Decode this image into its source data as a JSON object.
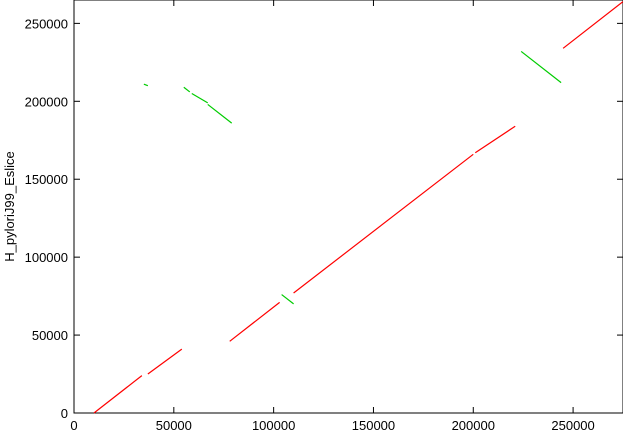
{
  "chart_data": {
    "type": "scatter",
    "title": "",
    "xlabel": "",
    "ylabel": "H_pyloriJ99_Eslice",
    "xlim": [
      0,
      275000
    ],
    "ylim": [
      0,
      265000
    ],
    "x_ticks": [
      "0",
      "50000",
      "100000",
      "150000",
      "200000",
      "250000"
    ],
    "y_ticks": [
      "0",
      "50000",
      "100000",
      "150000",
      "200000",
      "250000"
    ],
    "x_tick_values": [
      0,
      50000,
      100000,
      150000,
      200000,
      250000
    ],
    "y_tick_values": [
      0,
      50000,
      100000,
      150000,
      200000,
      250000
    ],
    "colors": {
      "forward": "#ff0000",
      "reverse": "#00cc00"
    },
    "series": [
      {
        "orientation": "forward",
        "segments": [
          {
            "x": [
              10000,
              34000
            ],
            "y": [
              0,
              24000
            ]
          },
          {
            "x": [
              37000,
              54000
            ],
            "y": [
              25000,
              41000
            ]
          },
          {
            "x": [
              78000,
              103000
            ],
            "y": [
              46000,
              71000
            ]
          },
          {
            "x": [
              110000,
              200000
            ],
            "y": [
              77000,
              166000
            ]
          },
          {
            "x": [
              201000,
              221000
            ],
            "y": [
              167000,
              184000
            ]
          },
          {
            "x": [
              245000,
              275000
            ],
            "y": [
              234000,
              264000
            ]
          }
        ]
      },
      {
        "orientation": "reverse",
        "segments": [
          {
            "x": [
              35000,
              37000
            ],
            "y": [
              211000,
              210000
            ]
          },
          {
            "x": [
              55000,
              58000
            ],
            "y": [
              209000,
              206000
            ]
          },
          {
            "x": [
              59000,
              67000
            ],
            "y": [
              205000,
              199000
            ]
          },
          {
            "x": [
              67000,
              79000
            ],
            "y": [
              198000,
              186000
            ]
          },
          {
            "x": [
              104000,
              110000
            ],
            "y": [
              76000,
              70000
            ]
          },
          {
            "x": [
              224000,
              244000
            ],
            "y": [
              232000,
              212000
            ]
          }
        ]
      }
    ]
  }
}
